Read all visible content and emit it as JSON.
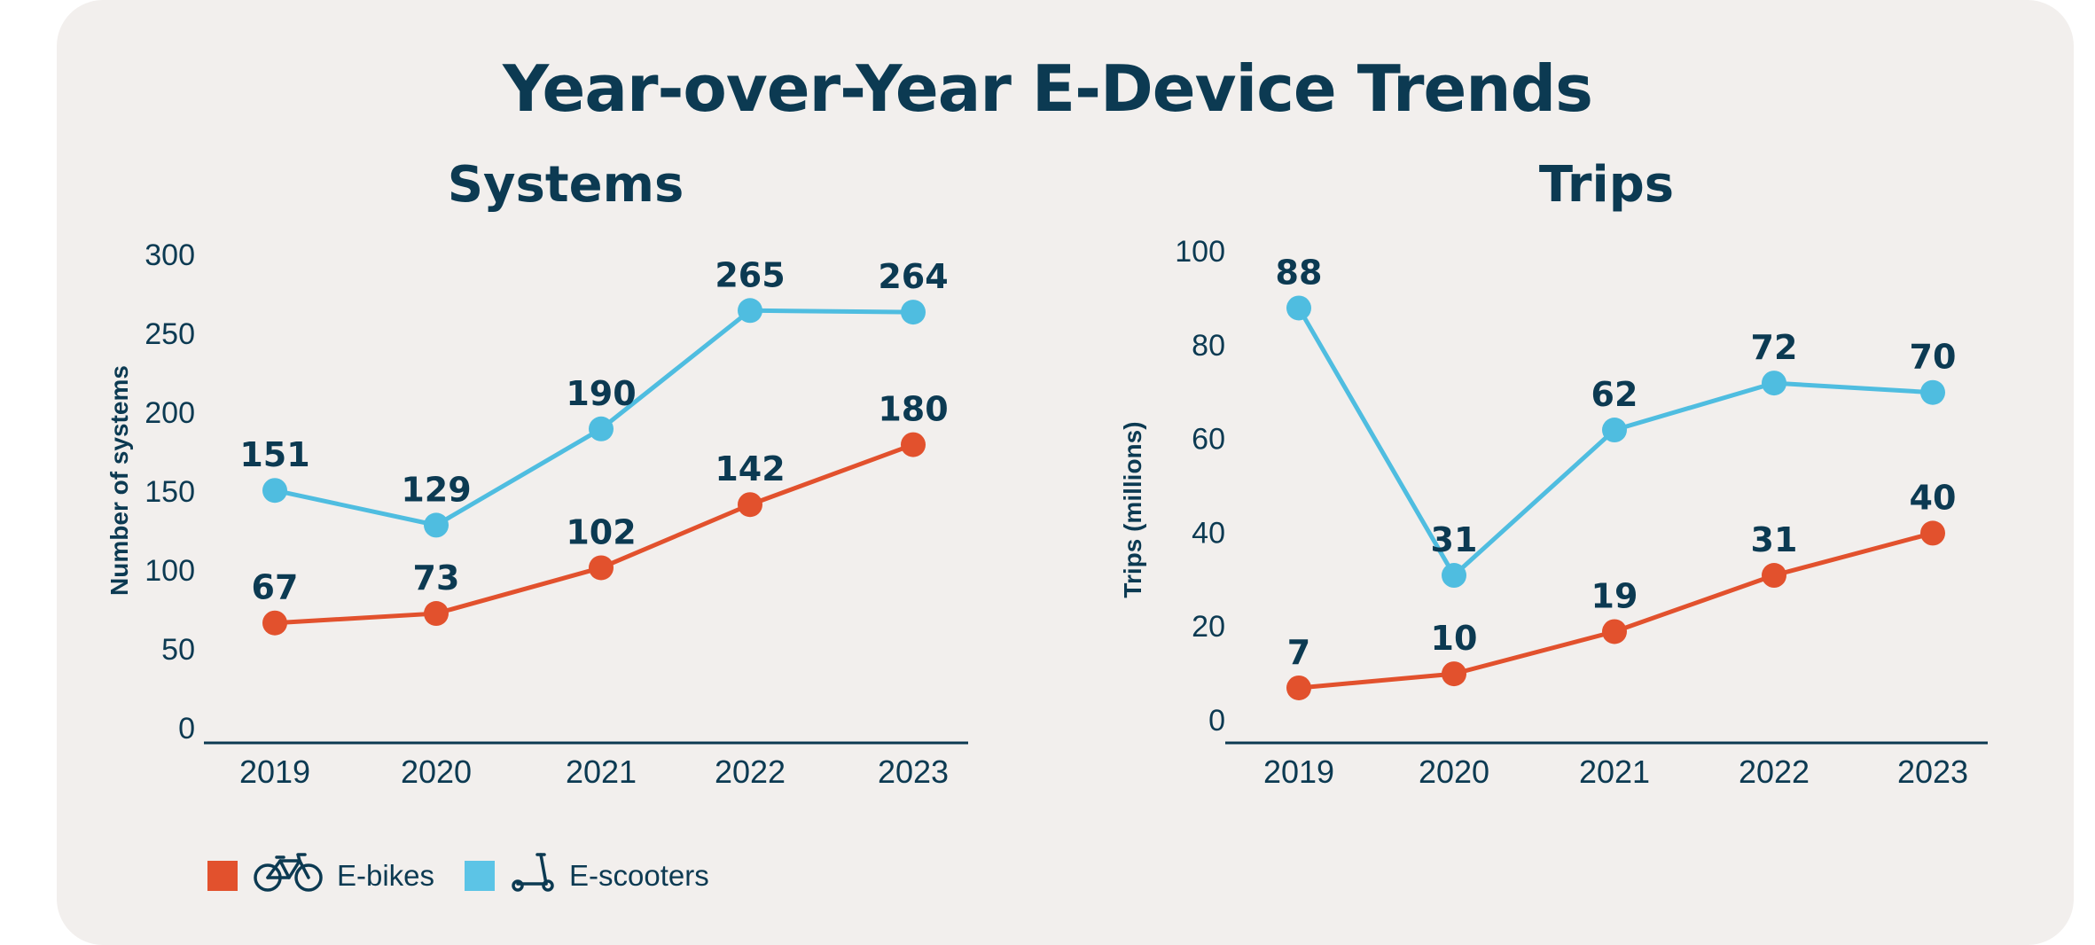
{
  "title": "Year-over-Year E-Device Trends",
  "colors": {
    "ebikes": "#e2512d",
    "escooters": "#4fbde0",
    "text": "#0c3a52",
    "background": "#f2efed"
  },
  "legend": [
    {
      "label": "E-bikes",
      "color": "#e2512d",
      "icon": "bicycle-icon"
    },
    {
      "label": "E-scooters",
      "color": "#5cc4e6",
      "icon": "scooter-icon"
    }
  ],
  "chart_data": [
    {
      "type": "line",
      "title": "Systems",
      "ylabel": "Number of systems",
      "xlabel": "",
      "categories": [
        "2019",
        "2020",
        "2021",
        "2022",
        "2023"
      ],
      "yticks": [
        0,
        50,
        100,
        150,
        200,
        250,
        300
      ],
      "ylim": [
        0,
        300
      ],
      "grid": false,
      "legend_position": "bottom-left",
      "series": [
        {
          "name": "E-scooters",
          "values": [
            151,
            129,
            190,
            265,
            264
          ]
        },
        {
          "name": "E-bikes",
          "values": [
            67,
            73,
            102,
            142,
            180
          ]
        }
      ]
    },
    {
      "type": "line",
      "title": "Trips",
      "ylabel": "Trips (millions)",
      "xlabel": "",
      "categories": [
        "2019",
        "2020",
        "2021",
        "2022",
        "2023"
      ],
      "yticks": [
        0,
        20,
        40,
        60,
        80,
        100
      ],
      "ylim": [
        0,
        100
      ],
      "grid": false,
      "legend_position": "bottom-left",
      "series": [
        {
          "name": "E-scooters",
          "values": [
            88,
            31,
            62,
            72,
            70
          ]
        },
        {
          "name": "E-bikes",
          "values": [
            7,
            10,
            19,
            31,
            40
          ]
        }
      ]
    }
  ]
}
